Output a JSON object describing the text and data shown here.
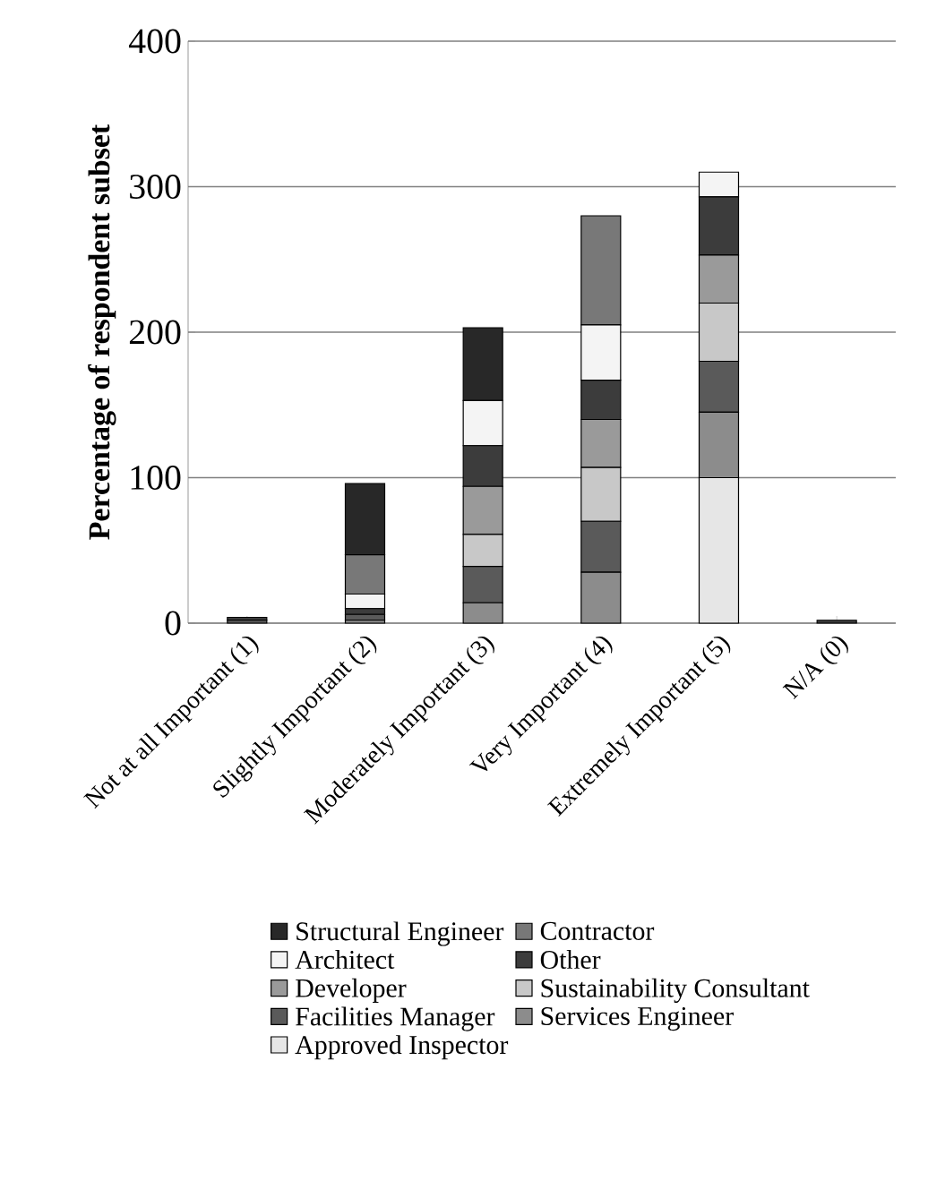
{
  "chart_data": {
    "type": "bar",
    "stacked": true,
    "ylabel": "Percentage of respondent subset",
    "categories": [
      "Not at all Important (1)",
      "Slightly Important (2)",
      "Moderately Important (3)",
      "Very Important (4)",
      "Extremely Important (5)",
      "N/A (0)"
    ],
    "ylim": [
      0,
      400
    ],
    "yticks": [
      0,
      100,
      200,
      300,
      400
    ],
    "grid": "y",
    "legend": "bottom",
    "series": [
      {
        "name": "Approved Inspector",
        "color": "#e6e6e6",
        "values": [
          0,
          0,
          0,
          0,
          100,
          0
        ]
      },
      {
        "name": "Services Engineer",
        "color": "#8c8c8c",
        "values": [
          0,
          2,
          14,
          35,
          45,
          0
        ]
      },
      {
        "name": "Facilities Manager",
        "color": "#5a5a5a",
        "values": [
          2,
          4,
          25,
          35,
          35,
          0
        ]
      },
      {
        "name": "Sustainability Consultant",
        "color": "#c8c8c8",
        "values": [
          0,
          0,
          22,
          37,
          40,
          0
        ]
      },
      {
        "name": "Developer",
        "color": "#9a9a9a",
        "values": [
          0,
          0,
          33,
          33,
          33,
          0
        ]
      },
      {
        "name": "Other",
        "color": "#3c3c3c",
        "values": [
          2,
          4,
          28,
          27,
          40,
          2
        ]
      },
      {
        "name": "Architect",
        "color": "#f4f4f4",
        "values": [
          0,
          10,
          31,
          38,
          17,
          0
        ]
      },
      {
        "name": "Contractor",
        "color": "#787878",
        "values": [
          0,
          27,
          0,
          75,
          0,
          0
        ]
      },
      {
        "name": "Structural Engineer",
        "color": "#282828",
        "values": [
          0,
          49,
          50,
          0,
          0,
          0
        ]
      }
    ]
  }
}
